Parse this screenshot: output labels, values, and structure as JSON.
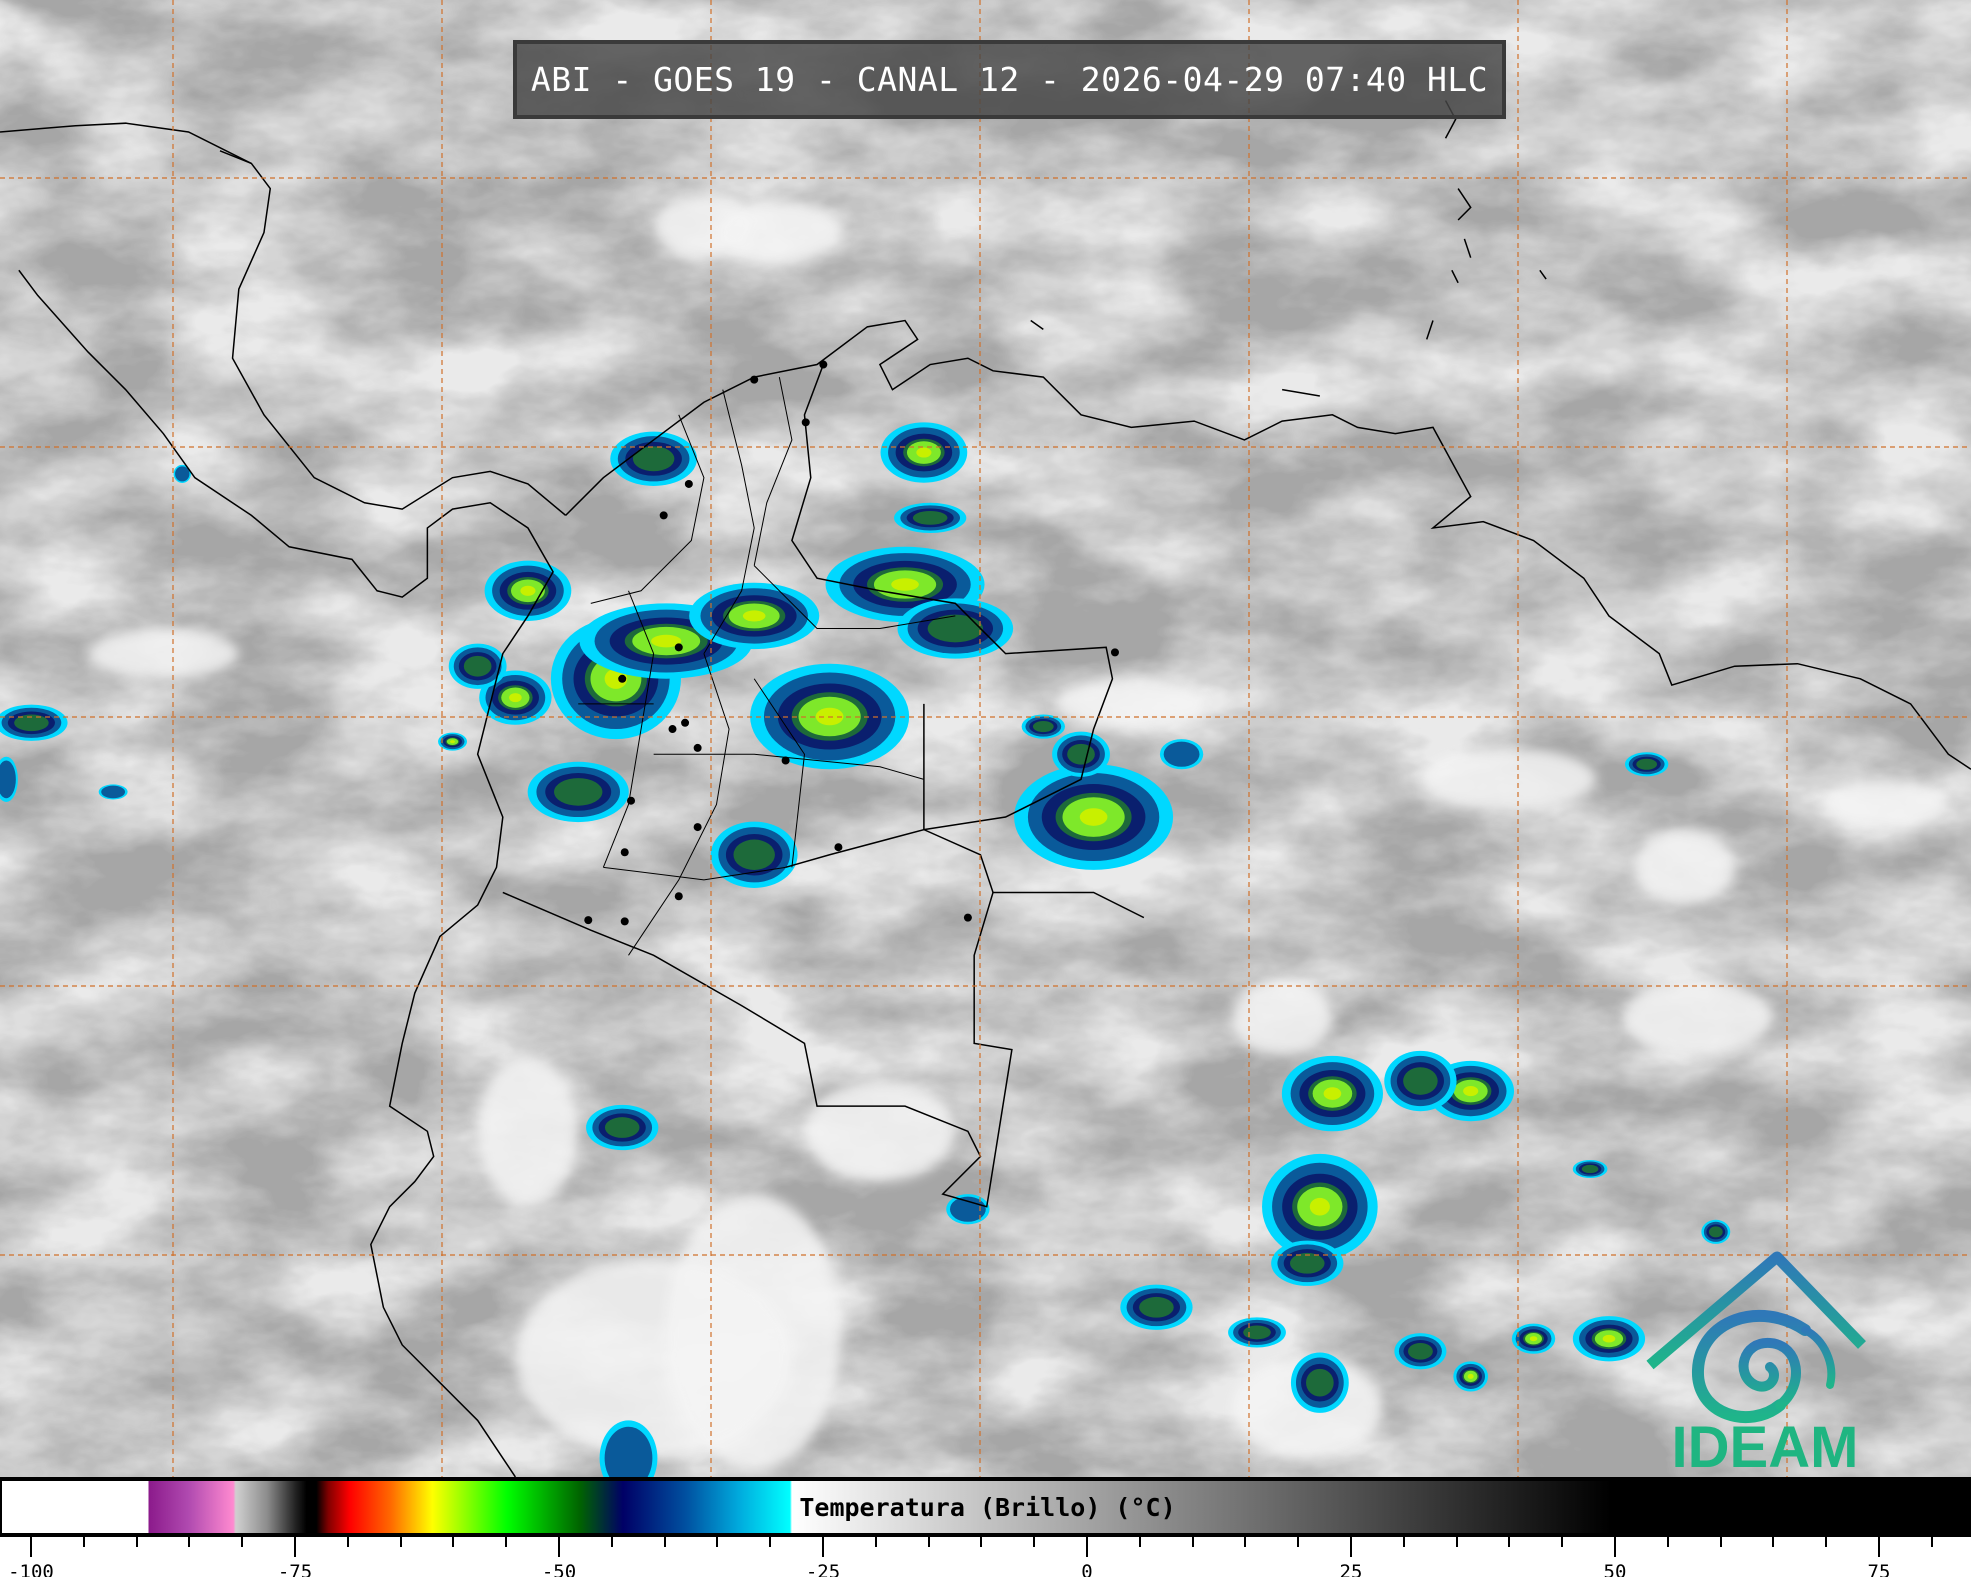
{
  "header": {
    "title": "ABI - GOES 19 - CANAL 12 - 2026-04-29 07:40 HLC"
  },
  "logo": {
    "text": "IDEAM",
    "colors": {
      "roof": "#2f7fb6",
      "swirl": "#1fb08a",
      "text": "#1fb581"
    }
  },
  "colorbar": {
    "label": "Temperatura (Brillo) (°C)",
    "unit": "°C",
    "range": [
      -103,
      84
    ],
    "tick_labels": [
      "-100",
      "-75",
      "-50",
      "-25",
      "0",
      "25",
      "50",
      "75"
    ],
    "tick_values": [
      -100,
      -75,
      -50,
      -25,
      0,
      25,
      50,
      75
    ],
    "minor_tick_step": 5
  },
  "map": {
    "gridline_color": "#d0702a",
    "coastline_color": "#000000",
    "layer": "brightness-temperature-infrared"
  }
}
